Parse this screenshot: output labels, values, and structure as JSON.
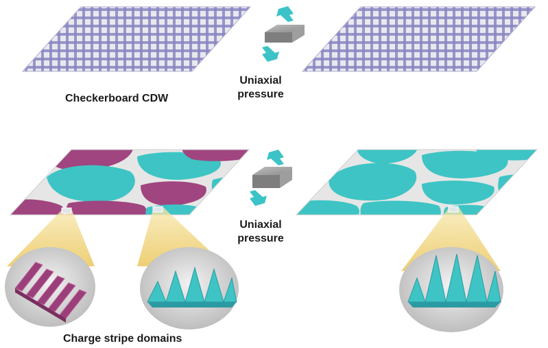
{
  "labels": {
    "top_left": "Checkerboard CDW",
    "pressure_top_line1": "Uniaxial",
    "pressure_top_line2": "pressure",
    "pressure_bottom_line1": "Uniaxial",
    "pressure_bottom_line2": "pressure",
    "bottom_left": "Charge stripe domains"
  },
  "colors": {
    "checker_purple": "#8a86c2",
    "checker_light": "#e8e8ef",
    "domain_magenta": "#a0457f",
    "domain_cyan": "#3ec4c4",
    "domain_background": "#e6e6e6",
    "arrow_cyan": "#3cc3c8",
    "block_gray": "#9b9b9b",
    "zoom_cone": "#f3d98a",
    "inset_gray": "#c9c9c9"
  }
}
